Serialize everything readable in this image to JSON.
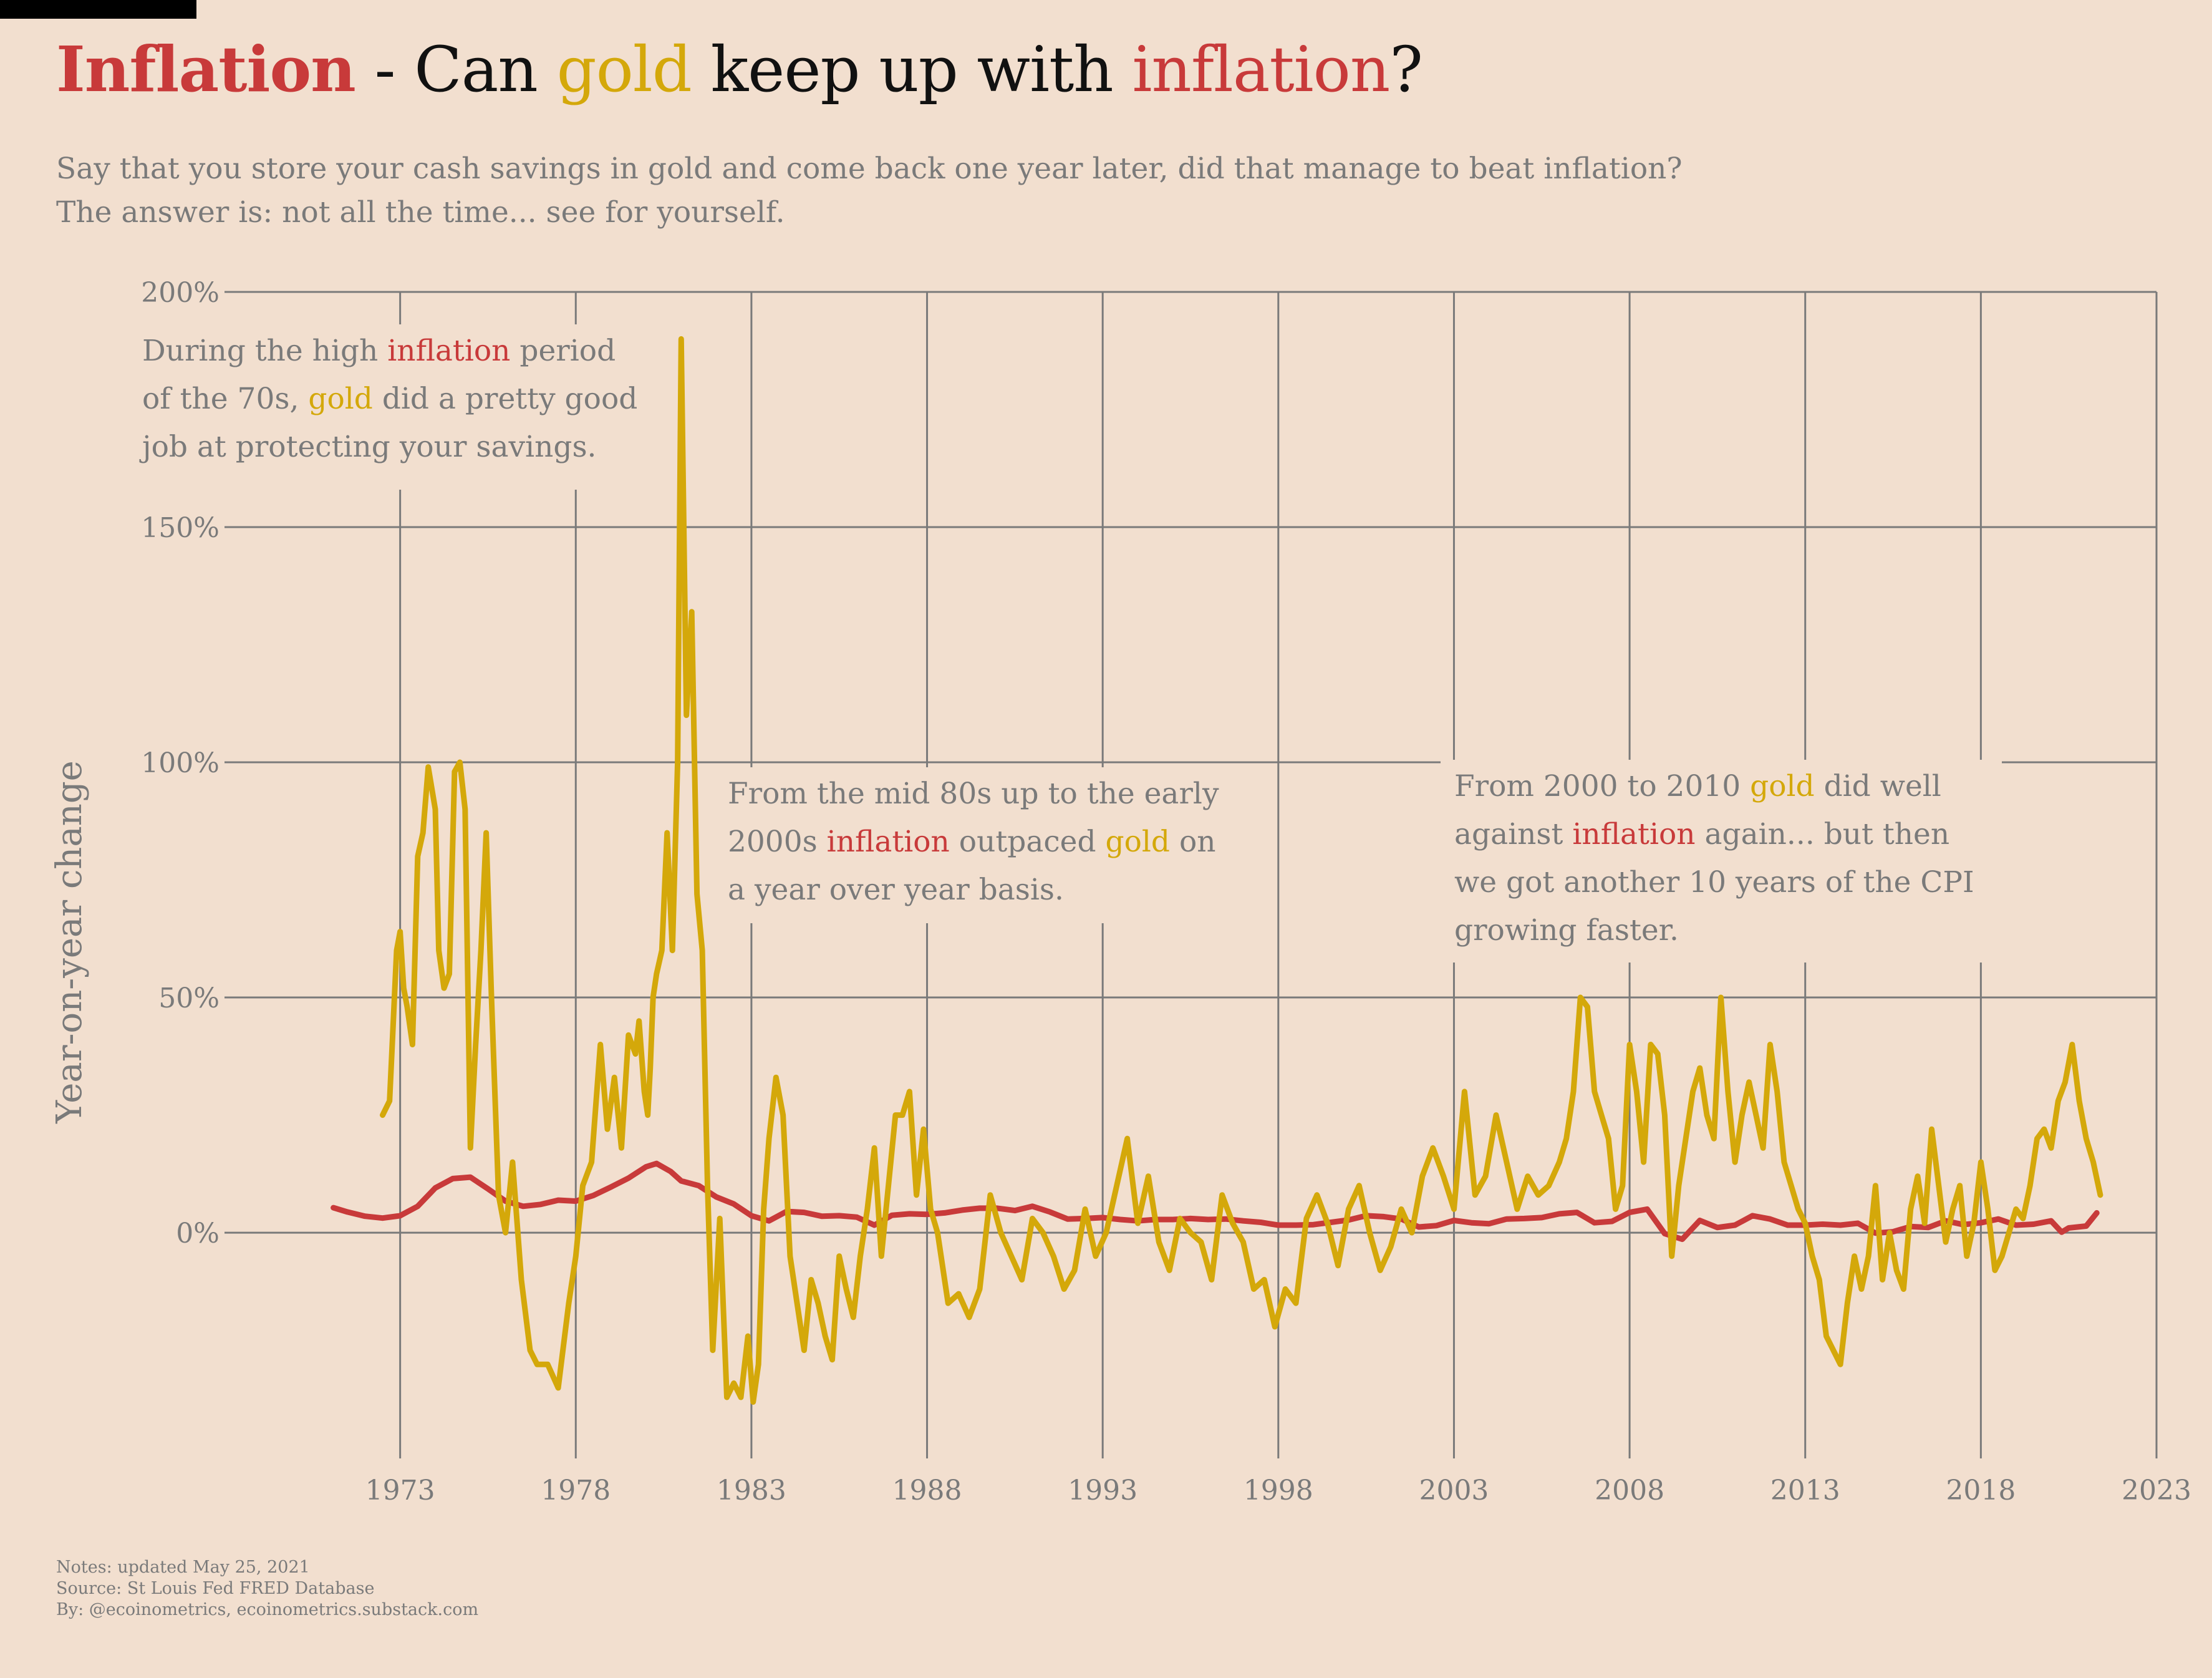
{
  "title": {
    "part1": "Inflation",
    "part2": " - Can ",
    "part3": "gold",
    "part4": " keep up with ",
    "part5": "inflation",
    "part6": "?"
  },
  "subtitle": {
    "line1": "Say that you store your cash savings in gold and come back one year later, did that manage to beat inflation?",
    "line2": "The answer is: not all the time... see for yourself."
  },
  "notes": {
    "line1": "Notes: updated May 25, 2021",
    "line2": "Source: St Louis Fed FRED Database",
    "line3": "By: @ecoinometrics, ecoinometrics.substack.com"
  },
  "colors": {
    "background": "#f2dfcf",
    "inflation": "#c83a3a",
    "gold": "#d4a80a",
    "grid": "#7a7a7a",
    "text": "#7a7a7a"
  },
  "chart_data": {
    "type": "line",
    "ylabel": "Year-on-year change",
    "xlim": [
      1968.0,
      2023.0
    ],
    "ylim": [
      -48,
      200
    ],
    "xticks": [
      1973,
      1978,
      1983,
      1988,
      1993,
      1998,
      2003,
      2008,
      2013,
      2018,
      2023
    ],
    "xtick_labels": [
      "1973",
      "1978",
      "1983",
      "1988",
      "1993",
      "1998",
      "2003",
      "2008",
      "2013",
      "2018",
      "2023"
    ],
    "yticks": [
      0,
      50,
      100,
      150,
      200
    ],
    "ytick_labels": [
      "0%",
      "50%",
      "100%",
      "150%",
      "200%"
    ],
    "grid": true,
    "series": [
      {
        "name": "inflation",
        "color": "#c83a3a",
        "x": [
          1971.1,
          1971.5,
          1972.0,
          1972.5,
          1973.0,
          1973.5,
          1974.0,
          1974.5,
          1975.0,
          1975.5,
          1976.0,
          1976.5,
          1977.0,
          1977.5,
          1978.0,
          1978.5,
          1979.0,
          1979.5,
          1980.0,
          1980.3,
          1980.7,
          1981.0,
          1981.5,
          1982.0,
          1982.5,
          1983.0,
          1983.5,
          1984.0,
          1984.5,
          1985.0,
          1985.5,
          1986.0,
          1986.5,
          1987.0,
          1987.5,
          1988.0,
          1988.5,
          1989.0,
          1989.5,
          1990.0,
          1990.5,
          1991.0,
          1991.5,
          1992.0,
          1992.5,
          1993.0,
          1993.5,
          1994.0,
          1994.5,
          1995.0,
          1995.5,
          1996.0,
          1996.5,
          1997.0,
          1997.5,
          1998.0,
          1998.5,
          1999.0,
          1999.5,
          2000.0,
          2000.5,
          2001.0,
          2001.5,
          2002.0,
          2002.5,
          2003.0,
          2003.5,
          2004.0,
          2004.5,
          2005.0,
          2005.5,
          2006.0,
          2006.5,
          2007.0,
          2007.5,
          2008.0,
          2008.5,
          2009.0,
          2009.5,
          2010.0,
          2010.5,
          2011.0,
          2011.5,
          2012.0,
          2012.5,
          2013.0,
          2013.5,
          2014.0,
          2014.5,
          2015.0,
          2015.5,
          2016.0,
          2016.5,
          2017.0,
          2017.5,
          2018.0,
          2018.5,
          2019.0,
          2019.5,
          2020.0,
          2020.3,
          2020.5,
          2021.0,
          2021.3
        ],
        "values": [
          5.3,
          4.4,
          3.5,
          3.1,
          3.6,
          5.6,
          9.5,
          11.5,
          11.8,
          9.3,
          6.7,
          5.6,
          6.0,
          6.9,
          6.7,
          7.9,
          9.7,
          11.6,
          14.0,
          14.7,
          13.0,
          11.0,
          10.0,
          7.6,
          6.1,
          3.6,
          2.5,
          4.5,
          4.3,
          3.5,
          3.6,
          3.3,
          1.6,
          3.7,
          4.0,
          3.9,
          4.2,
          4.8,
          5.2,
          5.2,
          4.7,
          5.6,
          4.4,
          2.9,
          3.0,
          3.2,
          2.8,
          2.5,
          2.8,
          2.8,
          3.0,
          2.8,
          2.9,
          2.5,
          2.2,
          1.6,
          1.6,
          1.7,
          2.2,
          2.7,
          3.6,
          3.4,
          2.9,
          1.2,
          1.5,
          2.6,
          2.1,
          1.9,
          2.9,
          3.0,
          3.2,
          4.0,
          4.3,
          2.1,
          2.4,
          4.3,
          5.0,
          -0.2,
          -1.4,
          2.6,
          1.1,
          1.6,
          3.6,
          2.9,
          1.6,
          1.6,
          1.8,
          1.6,
          2.0,
          -0.1,
          0.2,
          1.3,
          1.1,
          2.5,
          1.7,
          2.1,
          2.9,
          1.6,
          1.8,
          2.5,
          0.1,
          1.0,
          1.4,
          4.2
        ]
      },
      {
        "name": "gold",
        "color": "#d4a80a",
        "x": [
          1972.5,
          1972.7,
          1972.9,
          1973.0,
          1973.1,
          1973.2,
          1973.35,
          1973.5,
          1973.65,
          1973.8,
          1974.0,
          1974.1,
          1974.25,
          1974.4,
          1974.55,
          1974.7,
          1974.85,
          1975.0,
          1975.15,
          1975.3,
          1975.45,
          1975.6,
          1975.8,
          1976.0,
          1976.2,
          1976.45,
          1976.7,
          1976.9,
          1977.2,
          1977.5,
          1977.8,
          1978.0,
          1978.2,
          1978.45,
          1978.7,
          1978.9,
          1979.1,
          1979.3,
          1979.5,
          1979.7,
          1979.8,
          1979.95,
          1980.05,
          1980.12,
          1980.2,
          1980.3,
          1980.45,
          1980.6,
          1980.75,
          1980.9,
          1981.0,
          1981.15,
          1981.3,
          1981.45,
          1981.6,
          1981.75,
          1981.9,
          1982.1,
          1982.3,
          1982.5,
          1982.7,
          1982.9,
          1983.05,
          1983.2,
          1983.35,
          1983.5,
          1983.7,
          1983.9,
          1984.1,
          1984.3,
          1984.5,
          1984.7,
          1984.9,
          1985.1,
          1985.3,
          1985.5,
          1985.7,
          1985.9,
          1986.1,
          1986.3,
          1986.5,
          1986.7,
          1986.9,
          1987.1,
          1987.3,
          1987.5,
          1987.7,
          1987.9,
          1988.1,
          1988.3,
          1988.6,
          1988.9,
          1989.2,
          1989.5,
          1989.8,
          1990.1,
          1990.4,
          1990.7,
          1991.0,
          1991.3,
          1991.6,
          1991.9,
          1992.2,
          1992.5,
          1992.8,
          1993.1,
          1993.4,
          1993.7,
          1994.0,
          1994.3,
          1994.6,
          1994.9,
          1995.2,
          1995.5,
          1995.8,
          1996.1,
          1996.4,
          1996.7,
          1997.0,
          1997.3,
          1997.6,
          1997.9,
          1998.2,
          1998.5,
          1998.8,
          1999.1,
          1999.4,
          1999.7,
          2000.0,
          2000.3,
          2000.6,
          2000.9,
          2001.2,
          2001.5,
          2001.8,
          2002.1,
          2002.4,
          2002.7,
          2003.0,
          2003.3,
          2003.6,
          2003.9,
          2004.2,
          2004.5,
          2004.8,
          2005.1,
          2005.4,
          2005.7,
          2006.0,
          2006.2,
          2006.4,
          2006.6,
          2006.8,
          2007.0,
          2007.2,
          2007.4,
          2007.6,
          2007.8,
          2008.0,
          2008.2,
          2008.4,
          2008.6,
          2008.8,
          2009.0,
          2009.2,
          2009.4,
          2009.6,
          2009.8,
          2010.0,
          2010.2,
          2010.4,
          2010.6,
          2010.8,
          2011.0,
          2011.2,
          2011.4,
          2011.6,
          2011.8,
          2012.0,
          2012.2,
          2012.4,
          2012.6,
          2012.8,
          2013.0,
          2013.2,
          2013.4,
          2013.6,
          2013.8,
          2014.0,
          2014.2,
          2014.4,
          2014.6,
          2014.8,
          2015.0,
          2015.2,
          2015.4,
          2015.6,
          2015.8,
          2016.0,
          2016.2,
          2016.4,
          2016.6,
          2016.8,
          2017.0,
          2017.2,
          2017.4,
          2017.6,
          2017.8,
          2018.0,
          2018.2,
          2018.4,
          2018.6,
          2018.8,
          2019.0,
          2019.2,
          2019.4,
          2019.6,
          2019.8,
          2020.0,
          2020.2,
          2020.4,
          2020.6,
          2020.8,
          2021.0,
          2021.2,
          2021.4
        ],
        "values": [
          25,
          28,
          60,
          64,
          52,
          48,
          40,
          80,
          85,
          99,
          90,
          60,
          52,
          55,
          98,
          100,
          90,
          18,
          40,
          60,
          85,
          50,
          8,
          0,
          15,
          -10,
          -25,
          -28,
          -28,
          -33,
          -15,
          -5,
          10,
          15,
          40,
          22,
          33,
          18,
          42,
          38,
          45,
          30,
          25,
          35,
          50,
          55,
          60,
          85,
          60,
          100,
          190,
          110,
          132,
          72,
          60,
          10,
          -25,
          3,
          -35,
          -32,
          -35,
          -22,
          -36,
          -28,
          5,
          20,
          33,
          25,
          -5,
          -15,
          -25,
          -10,
          -15,
          -22,
          -27,
          -5,
          -12,
          -18,
          -5,
          5,
          18,
          -5,
          10,
          25,
          25,
          30,
          8,
          22,
          5,
          0,
          -15,
          -13,
          -18,
          -12,
          8,
          0,
          -5,
          -10,
          3,
          0,
          -5,
          -12,
          -8,
          5,
          -5,
          0,
          10,
          20,
          2,
          12,
          -2,
          -8,
          3,
          0,
          -2,
          -10,
          8,
          2,
          -2,
          -12,
          -10,
          -20,
          -12,
          -15,
          3,
          8,
          2,
          -7,
          5,
          10,
          0,
          -8,
          -3,
          5,
          0,
          12,
          18,
          12,
          5,
          30,
          8,
          12,
          25,
          15,
          5,
          12,
          8,
          10,
          15,
          20,
          30,
          50,
          48,
          30,
          25,
          20,
          5,
          10,
          40,
          30,
          15,
          40,
          38,
          25,
          -5,
          10,
          20,
          30,
          35,
          25,
          20,
          50,
          30,
          15,
          25,
          32,
          25,
          18,
          40,
          30,
          15,
          10,
          5,
          2,
          -5,
          -10,
          -22,
          -25,
          -28,
          -15,
          -5,
          -12,
          -5,
          10,
          -10,
          0,
          -8,
          -12,
          5,
          12,
          2,
          22,
          10,
          -2,
          5,
          10,
          -5,
          2,
          15,
          5,
          -8,
          -5,
          0,
          5,
          3,
          10,
          20,
          22,
          18,
          28,
          32,
          40,
          28,
          20,
          15,
          8
        ]
      }
    ],
    "annotations": [
      {
        "lines": [
          [
            {
              "t": "During the high ",
              "c": "text"
            },
            {
              "t": "inflation",
              "c": "inflation"
            },
            {
              "t": " period",
              "c": "text"
            }
          ],
          [
            {
              "t": "of the 70s, ",
              "c": "text"
            },
            {
              "t": "gold",
              "c": "gold"
            },
            {
              "t": " did a pretty good",
              "c": "text"
            }
          ],
          [
            {
              "t": "job at protecting your savings.",
              "c": "text"
            }
          ]
        ]
      },
      {
        "lines": [
          [
            {
              "t": "From the mid 80s up to the early",
              "c": "text"
            }
          ],
          [
            {
              "t": "2000s ",
              "c": "text"
            },
            {
              "t": "inflation",
              "c": "inflation"
            },
            {
              "t": " outpaced ",
              "c": "text"
            },
            {
              "t": "gold",
              "c": "gold"
            },
            {
              "t": " on",
              "c": "text"
            }
          ],
          [
            {
              "t": "a year over year basis.",
              "c": "text"
            }
          ]
        ]
      },
      {
        "lines": [
          [
            {
              "t": "From 2000 to 2010 ",
              "c": "text"
            },
            {
              "t": "gold",
              "c": "gold"
            },
            {
              "t": " did well",
              "c": "text"
            }
          ],
          [
            {
              "t": "against ",
              "c": "text"
            },
            {
              "t": "inflation",
              "c": "inflation"
            },
            {
              "t": " again... but then",
              "c": "text"
            }
          ],
          [
            {
              "t": "we got another 10 years of the CPI",
              "c": "text"
            }
          ],
          [
            {
              "t": "growing faster.",
              "c": "text"
            }
          ]
        ]
      }
    ]
  }
}
